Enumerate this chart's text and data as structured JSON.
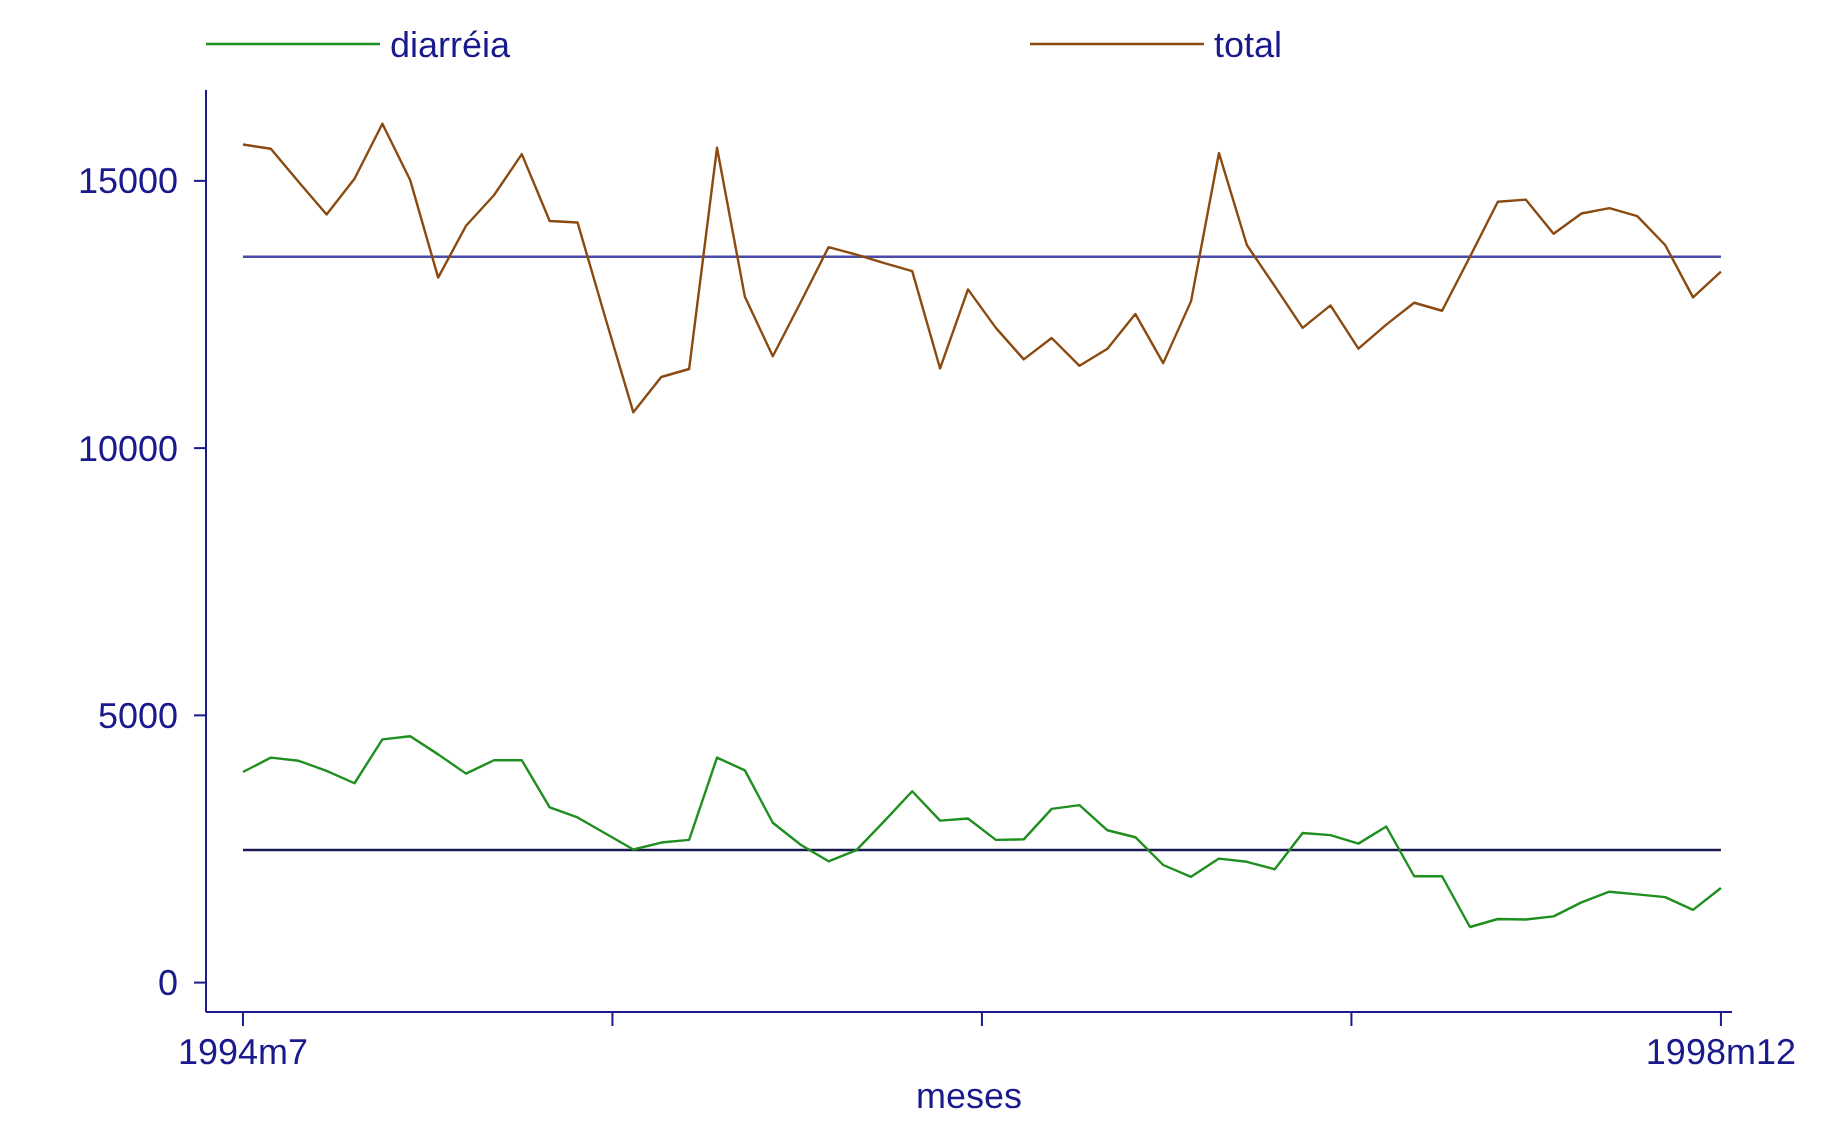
{
  "chart_data": {
    "type": "line",
    "xlabel": "meses",
    "series": [
      {
        "name": "diarréia",
        "color": "#1f8f1f",
        "values": [
          3940,
          4210,
          4150,
          3960,
          3730,
          4550,
          4610,
          4270,
          3910,
          4160,
          4160,
          3280,
          3090,
          2790,
          2490,
          2620,
          2670,
          4210,
          3970,
          2990,
          2580,
          2270,
          2480,
          3020,
          3580,
          3030,
          3070,
          2670,
          2680,
          3250,
          3320,
          2850,
          2720,
          2200,
          1980,
          2320,
          2260,
          2120,
          2800,
          2760,
          2600,
          2920,
          1990,
          1990,
          1040,
          1190,
          1180,
          1240,
          1500,
          1700,
          1650,
          1600,
          1360,
          1770
        ]
      },
      {
        "name": "total",
        "color": "#8b4a10",
        "values": [
          15680,
          15600,
          14980,
          14370,
          15040,
          16070,
          15010,
          13190,
          14160,
          14730,
          15500,
          14250,
          14220,
          12430,
          10670,
          11330,
          11480,
          15620,
          12830,
          11720,
          12730,
          13760,
          13620,
          13460,
          13310,
          11490,
          12970,
          12250,
          11660,
          12060,
          11540,
          11860,
          12510,
          11590,
          12750,
          15520,
          13800,
          13030,
          12250,
          12670,
          11860,
          12310,
          12720,
          12570,
          13580,
          14610,
          14650,
          14010,
          14390,
          14490,
          14340,
          13800,
          12820,
          13300
        ]
      }
    ],
    "ref_lines": [
      {
        "axis": "y",
        "value": 13580,
        "color": "#4a4aa8"
      },
      {
        "axis": "y",
        "value": 2480,
        "color": "#1a1a50"
      }
    ],
    "categories": [
      "1994m7",
      null,
      null,
      null,
      null,
      null,
      null,
      null,
      null,
      null,
      null,
      null,
      null,
      null,
      null,
      null,
      null,
      null,
      null,
      null,
      null,
      null,
      null,
      null,
      null,
      null,
      null,
      null,
      null,
      null,
      null,
      null,
      null,
      null,
      null,
      null,
      null,
      null,
      null,
      null,
      null,
      null,
      null,
      null,
      null,
      null,
      null,
      null,
      null,
      null,
      null,
      null,
      null,
      "1998m12"
    ],
    "ylim": [
      -550,
      16700
    ],
    "yticks": [
      0,
      5000,
      10000,
      15000
    ],
    "legend": "top",
    "grid": false,
    "marker": "none",
    "line_style": "solid"
  }
}
